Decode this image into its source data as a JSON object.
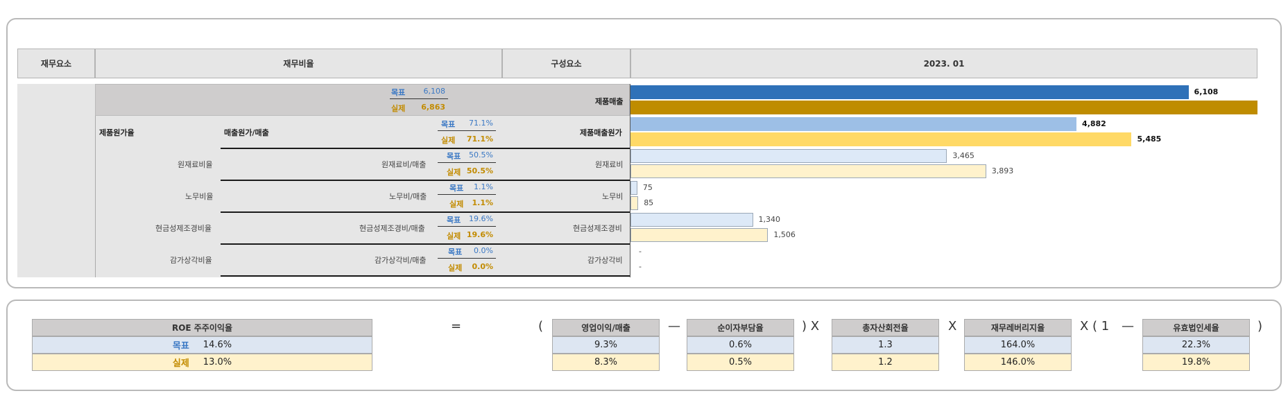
{
  "header": {
    "col_element": "재무요소",
    "col_ratio": "재무비율",
    "col_component": "구성요소",
    "col_period": "2023. 01"
  },
  "legend": {
    "target": "목표",
    "actual": "실제"
  },
  "rows": [
    {
      "ratio_group": "",
      "ratio_name": "",
      "component": "제품매출",
      "target_ratio": "6,108",
      "actual_ratio": "6,863",
      "target_bar": 6108,
      "actual_bar": 6863,
      "target_label": "6,108",
      "actual_label": ""
    },
    {
      "ratio_group": "제품원가율",
      "ratio_name": "매출원가/매출",
      "component": "제품매출원가",
      "target_ratio": "71.1%",
      "actual_ratio": "71.1%",
      "target_bar": 4882,
      "actual_bar": 5485,
      "target_label": "4,882",
      "actual_label": "5,485"
    },
    {
      "ratio_group": "원재료비율",
      "ratio_name": "원재료비/매출",
      "component": "원재료비",
      "target_ratio": "50.5%",
      "actual_ratio": "50.5%",
      "target_bar": 3465,
      "actual_bar": 3893,
      "target_label": "3,465",
      "actual_label": "3,893"
    },
    {
      "ratio_group": "노무비율",
      "ratio_name": "노무비/매출",
      "component": "노무비",
      "target_ratio": "1.1%",
      "actual_ratio": "1.1%",
      "target_bar": 75,
      "actual_bar": 85,
      "target_label": "75",
      "actual_label": "85"
    },
    {
      "ratio_group": "현금성제조경비율",
      "ratio_name": "현금성제조경비/매출",
      "component": "현금성제조경비",
      "target_ratio": "19.6%",
      "actual_ratio": "19.6%",
      "target_bar": 1340,
      "actual_bar": 1506,
      "target_label": "1,340",
      "actual_label": "1,506"
    },
    {
      "ratio_group": "감가상각비율",
      "ratio_name": "감가상각비/매출",
      "component": "감가상각비",
      "target_ratio": "0.0%",
      "actual_ratio": "0.0%",
      "target_bar": 0,
      "actual_bar": 0,
      "target_label": "-",
      "actual_label": "-"
    }
  ],
  "bar_colors": {
    "row0": [
      "#2f71b8",
      "#bf8c00"
    ],
    "row1": [
      "#9dbfe6",
      "#ffd966"
    ],
    "rest": [
      "#dde9f7",
      "#fff2cc"
    ]
  },
  "roe": {
    "title": "ROE   주주이익율",
    "target_label": "목표",
    "target_value": "14.6%",
    "actual_label": "실제",
    "actual_value": "13.0%",
    "equals": "=",
    "open_paren": "(",
    "close_paren_x": ") X",
    "times": "X",
    "paren_one": "X  (  1",
    "minus": "—",
    "close_paren": ")",
    "factors": [
      {
        "name": "영업이익/매출",
        "target": "9.3%",
        "actual": "8.3%"
      },
      {
        "name": "순이자부담율",
        "target": "0.6%",
        "actual": "0.5%"
      },
      {
        "name": "총자산회전율",
        "target": "1.3",
        "actual": "1.2"
      },
      {
        "name": "재무레버리지율",
        "target": "164.0%",
        "actual": "146.0%"
      },
      {
        "name": "유효법인세율",
        "target": "22.3%",
        "actual": "19.8%"
      }
    ]
  }
}
